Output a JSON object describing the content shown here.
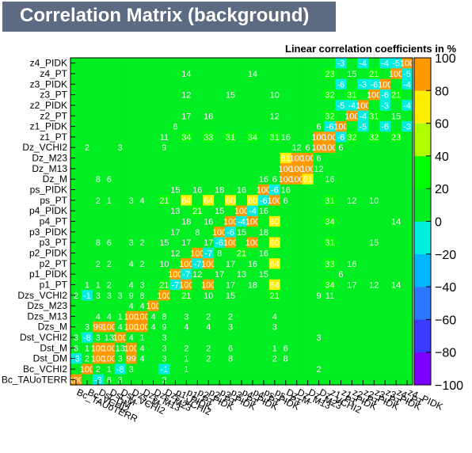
{
  "chart_data": {
    "type": "heatmap",
    "title": "Correlation Matrix (background)",
    "subtitle": "Linear correlation coefficients in %",
    "variables": [
      "Bc_TAUoTERR",
      "Bc_VCHI2",
      "Dst_DM",
      "Dst_M",
      "Dst_VCHI2",
      "Dzs_M",
      "Dzs_M13",
      "Dzs_M23",
      "Dzs_VCHI2",
      "p1_PIDK",
      "p1_PT",
      "p2_PIDK",
      "p2_PT",
      "p3_PIDK",
      "p3_PT",
      "p4_PIDK",
      "p4_PT",
      "ps_PIDK",
      "ps_PT",
      "Dz_M",
      "Dz_M13",
      "Dz_M23",
      "Dz_VCHI2",
      "z1_PT",
      "z1_PIDK",
      "z2_PT",
      "z2_PIDK",
      "z3_PT",
      "z3_PIDK",
      "z4_PT",
      "z4_PIDK"
    ],
    "y_labels": [
      "z4_PIDK",
      "z4_PT",
      "z3_PIDK",
      "z3_PT",
      "z2_PIDK",
      "z2_PT",
      "z1_PIDK",
      "z1_PT",
      "Dz_VCHI2",
      "Dz_M23",
      "Dz_M13",
      "Dz_M",
      "ps_PIDK",
      "ps_PT",
      "p4_PIDK",
      "p4_PT",
      "p3_PIDK",
      "p3_PT",
      "p2_PIDK",
      "p2_PT",
      "p1_PIDK",
      "p1_PT",
      "Dzs_VCHI2",
      "Dzs_M23",
      "Dzs_M13",
      "Dzs_M",
      "Dst_VCHI2",
      "Dst_M",
      "Dst_DM",
      "Bc_VCHI2",
      "Bc_TAUoTERR"
    ],
    "x_labels": [
      "Bc_TAUoTERR",
      "Bc_VCHI2",
      "Dst_DM",
      "Dst_M",
      "Dst_VCHI2",
      "Dzs_M",
      "Dzs_M13",
      "Dzs_M23",
      "Dzs_VCHI2",
      "p1_PIDK",
      "p1_PT",
      "p2_PIDK",
      "p2_PT",
      "p3_PIDK",
      "p3_PT",
      "p4_PIDK",
      "p4_PT",
      "ps_PIDK",
      "ps_PT",
      "Dz_M",
      "Dz_M13",
      "Dz_M23",
      "Dz_VCHI2",
      "z1_PT",
      "z1_PIDK",
      "z2_PT",
      "z2_PIDK",
      "z3_PT",
      "z3_PIDK",
      "z4_PT",
      "z4_PIDK"
    ],
    "colorbar_ticks": [
      "100",
      "80",
      "60",
      "40",
      "20",
      "0",
      "−20",
      "−40",
      "−60",
      "−80",
      "−100"
    ],
    "zlim": [
      -100,
      100
    ],
    "pairs": [
      [
        "Bc_TAUoTERR",
        "Dst_DM",
        -3
      ],
      [
        "Bc_TAUoTERR",
        "Dst_M",
        6
      ],
      [
        "Bc_TAUoTERR",
        "Dst_VCHI2",
        3
      ],
      [
        "Bc_TAUoTERR",
        "Dzs_VCHI2",
        2
      ],
      [
        "Bc_VCHI2",
        "Dst_DM",
        2
      ],
      [
        "Bc_VCHI2",
        "Dst_M",
        1
      ],
      [
        "Bc_VCHI2",
        "Dst_VCHI2",
        -8
      ],
      [
        "Bc_VCHI2",
        "Dzs_M",
        3
      ],
      [
        "Bc_VCHI2",
        "Dzs_VCHI2",
        -1
      ],
      [
        "Bc_VCHI2",
        "p1_PT",
        1
      ],
      [
        "Bc_VCHI2",
        "Dz_VCHI2",
        2
      ],
      [
        "Dst_DM",
        "Dst_M",
        100
      ],
      [
        "Dst_DM",
        "Dst_VCHI2",
        3
      ],
      [
        "Dst_DM",
        "Dzs_M",
        99
      ],
      [
        "Dst_DM",
        "Dzs_M13",
        4
      ],
      [
        "Dst_DM",
        "Dzs_VCHI2",
        3
      ],
      [
        "Dst_DM",
        "p1_PT",
        1
      ],
      [
        "Dst_DM",
        "p2_PT",
        2
      ],
      [
        "Dst_DM",
        "p3_PT",
        8
      ],
      [
        "Dst_DM",
        "ps_PT",
        2
      ],
      [
        "Dst_DM",
        "Dz_M",
        8
      ],
      [
        "Dst_M",
        "Dst_VCHI2",
        13
      ],
      [
        "Dst_M",
        "Dzs_M",
        100
      ],
      [
        "Dst_M",
        "Dzs_M13",
        4
      ],
      [
        "Dst_M",
        "Dzs_VCHI2",
        3
      ],
      [
        "Dst_M",
        "p1_PT",
        2
      ],
      [
        "Dst_M",
        "p2_PT",
        2
      ],
      [
        "Dst_M",
        "p3_PT",
        6
      ],
      [
        "Dst_M",
        "ps_PT",
        1
      ],
      [
        "Dst_M",
        "Dz_M",
        6
      ],
      [
        "Dst_VCHI2",
        "Dzs_M",
        4
      ],
      [
        "Dst_VCHI2",
        "Dzs_M13",
        1
      ],
      [
        "Dst_VCHI2",
        "Dzs_VCHI2",
        3
      ],
      [
        "Dst_VCHI2",
        "Dz_VCHI2",
        3
      ],
      [
        "Dzs_M",
        "Dzs_M13",
        100
      ],
      [
        "Dzs_M",
        "Dzs_M23",
        4
      ],
      [
        "Dzs_M",
        "Dzs_VCHI2",
        9
      ],
      [
        "Dzs_M",
        "p1_PT",
        4
      ],
      [
        "Dzs_M",
        "p2_PT",
        4
      ],
      [
        "Dzs_M",
        "p3_PT",
        3
      ],
      [
        "Dzs_M",
        "ps_PT",
        3
      ],
      [
        "Dzs_M13",
        "Dzs_M23",
        4
      ],
      [
        "Dzs_M13",
        "Dzs_VCHI2",
        8
      ],
      [
        "Dzs_M13",
        "p1_PT",
        3
      ],
      [
        "Dzs_M13",
        "p2_PT",
        2
      ],
      [
        "Dzs_M13",
        "p3_PT",
        2
      ],
      [
        "Dzs_M13",
        "ps_PT",
        4
      ],
      [
        "Dzs_VCHI2",
        "p1_PT",
        21
      ],
      [
        "Dzs_VCHI2",
        "p2_PT",
        10
      ],
      [
        "Dzs_VCHI2",
        "p3_PT",
        15
      ],
      [
        "Dzs_VCHI2",
        "ps_PT",
        21
      ],
      [
        "Dzs_VCHI2",
        "Dz_VCHI2",
        9
      ],
      [
        "Dzs_VCHI2",
        "z1_PT",
        11
      ],
      [
        "p1_PIDK",
        "p1_PT",
        -7
      ],
      [
        "p1_PIDK",
        "p2_PIDK",
        12
      ],
      [
        "p1_PIDK",
        "p3_PIDK",
        17
      ],
      [
        "p1_PIDK",
        "p4_PIDK",
        13
      ],
      [
        "p1_PIDK",
        "ps_PIDK",
        15
      ],
      [
        "p1_PIDK",
        "z1_PIDK",
        6
      ],
      [
        "p1_PT",
        "p2_PT",
        100
      ],
      [
        "p1_PT",
        "p3_PT",
        17
      ],
      [
        "p1_PT",
        "p4_PT",
        18
      ],
      [
        "p1_PT",
        "ps_PT",
        64
      ],
      [
        "p1_PT",
        "z1_PT",
        34
      ],
      [
        "p1_PT",
        "z2_PT",
        17
      ],
      [
        "p1_PT",
        "z3_PT",
        12
      ],
      [
        "p1_PT",
        "z4_PT",
        14
      ],
      [
        "p2_PIDK",
        "p2_PT",
        -7
      ],
      [
        "p2_PIDK",
        "p3_PIDK",
        8
      ],
      [
        "p2_PIDK",
        "p4_PIDK",
        21
      ],
      [
        "p2_PIDK",
        "ps_PIDK",
        16
      ],
      [
        "p2_PT",
        "p3_PT",
        17
      ],
      [
        "p2_PT",
        "p4_PT",
        16
      ],
      [
        "p2_PT",
        "ps_PT",
        64
      ],
      [
        "p2_PT",
        "z1_PT",
        33
      ],
      [
        "p2_PT",
        "z2_PT",
        16
      ],
      [
        "p3_PIDK",
        "p3_PT",
        -6
      ],
      [
        "p3_PIDK",
        "p4_PIDK",
        15
      ],
      [
        "p3_PIDK",
        "ps_PIDK",
        18
      ],
      [
        "p3_PT",
        "p4_PT",
        100
      ],
      [
        "p3_PT",
        "ps_PT",
        60
      ],
      [
        "p3_PT",
        "z1_PT",
        31
      ],
      [
        "p3_PT",
        "z3_PT",
        15
      ],
      [
        "p4_PIDK",
        "p4_PT",
        -4
      ],
      [
        "p4_PIDK",
        "ps_PIDK",
        16
      ],
      [
        "p4_PT",
        "ps_PT",
        60
      ],
      [
        "p4_PT",
        "z1_PT",
        34
      ],
      [
        "p4_PT",
        "z4_PT",
        14
      ],
      [
        "ps_PIDK",
        "ps_PT",
        -6
      ],
      [
        "ps_PIDK",
        "Dz_M",
        16
      ],
      [
        "ps_PT",
        "Dz_M",
        6
      ],
      [
        "ps_PT",
        "z1_PT",
        31
      ],
      [
        "ps_PT",
        "z2_PT",
        12
      ],
      [
        "ps_PT",
        "z3_PT",
        10
      ],
      [
        "Dz_M",
        "Dz_M13",
        100
      ],
      [
        "Dz_M",
        "Dz_M23",
        61
      ],
      [
        "Dz_M",
        "z1_PT",
        16
      ],
      [
        "Dz_M13",
        "Dz_M23",
        100
      ],
      [
        "Dz_M13",
        "Dz_VCHI2",
        12
      ],
      [
        "Dz_M23",
        "Dz_VCHI2",
        6
      ],
      [
        "Dz_VCHI2",
        "z1_PT",
        100
      ],
      [
        "Dz_VCHI2",
        "z1_PIDK",
        6
      ],
      [
        "z1_PT",
        "z1_PIDK",
        -6
      ],
      [
        "z1_PT",
        "z2_PT",
        32
      ],
      [
        "z1_PT",
        "z3_PT",
        32
      ],
      [
        "z1_PT",
        "z4_PT",
        23
      ],
      [
        "z1_PIDK",
        "z2_PIDK",
        -5
      ],
      [
        "z1_PIDK",
        "z3_PIDK",
        -6
      ],
      [
        "z1_PIDK",
        "z4_PIDK",
        -3
      ],
      [
        "z2_PT",
        "z2_PIDK",
        -4
      ],
      [
        "z2_PT",
        "z3_PT",
        31
      ],
      [
        "z2_PT",
        "z4_PT",
        15
      ],
      [
        "z2_PIDK",
        "z3_PIDK",
        -3
      ],
      [
        "z2_PIDK",
        "z4_PIDK",
        -4
      ],
      [
        "z3_PT",
        "z3_PIDK",
        -6
      ],
      [
        "z3_PT",
        "z4_PT",
        21
      ],
      [
        "z3_PIDK",
        "z4_PIDK",
        -4
      ],
      [
        "z4_PT",
        "z4_PIDK",
        -5
      ]
    ]
  }
}
